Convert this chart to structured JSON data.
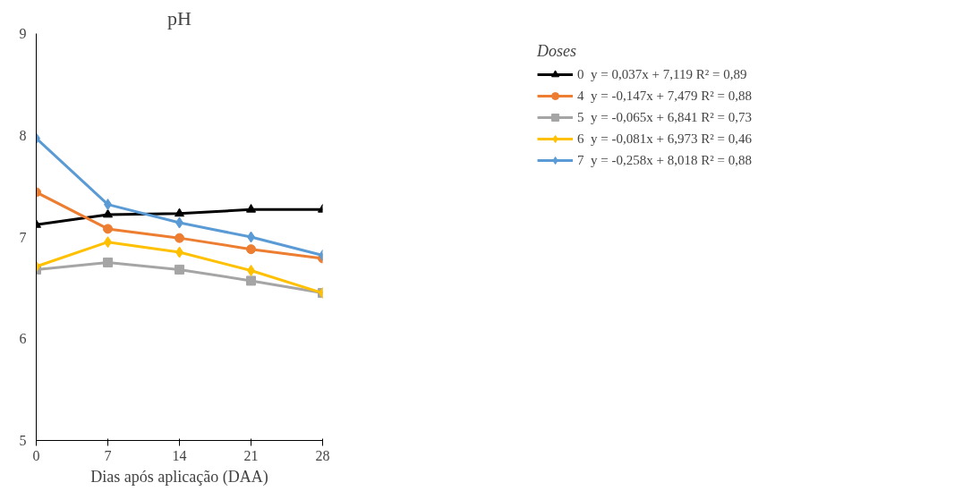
{
  "chart_data": {
    "type": "line",
    "title": "pH",
    "xlabel": "Dias após aplicação (DAA)",
    "legend_title": "Doses",
    "x": [
      0,
      7,
      14,
      21,
      28
    ],
    "xlim": [
      0,
      28
    ],
    "xticks": [
      0,
      7,
      14,
      21,
      28
    ],
    "ylim": [
      5,
      9
    ],
    "yticks": [
      5,
      6,
      7,
      8,
      9
    ],
    "grid": false,
    "legend": "right",
    "line_style": "solid",
    "series": [
      {
        "name": "0  y = 0,037x + 7,119 R² = 0,89",
        "color": "#000000",
        "marker": "triangle",
        "values": [
          7.12,
          7.22,
          7.23,
          7.27,
          7.27
        ]
      },
      {
        "name": "4  y = -0,147x + 7,479 R² = 0,88",
        "color": "#ed7d31",
        "marker": "circle",
        "values": [
          7.44,
          7.08,
          6.99,
          6.88,
          6.79
        ]
      },
      {
        "name": "5  y = -0,065x + 6,841 R² = 0,73",
        "color": "#a5a5a5",
        "marker": "square",
        "values": [
          6.68,
          6.75,
          6.68,
          6.57,
          6.45
        ]
      },
      {
        "name": "6  y = -0,081x + 6,973 R² = 0,46",
        "color": "#ffc000",
        "marker": "diamond",
        "values": [
          6.71,
          6.95,
          6.85,
          6.67,
          6.45
        ]
      },
      {
        "name": "7  y = -0,258x + 8,018 R² = 0,88",
        "color": "#5b9bd5",
        "marker": "diamond",
        "values": [
          7.97,
          7.32,
          7.14,
          7.0,
          6.82
        ]
      }
    ]
  }
}
